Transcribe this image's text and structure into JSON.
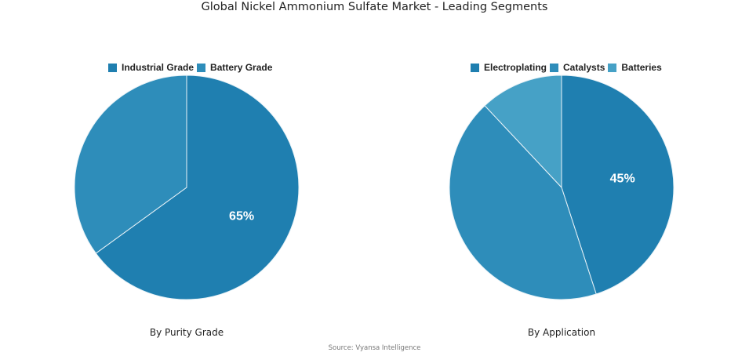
{
  "title": "Global Nickel Ammonium Sulfate Market - Leading Segments",
  "source": "Source: Vyansa Intelligence",
  "colors": {
    "dark": "#1f7fb0",
    "mid": "#2e8dba",
    "light": "#46a1c6"
  },
  "chart_data": [
    {
      "type": "pie",
      "title": "By Purity Grade",
      "categories": [
        "Industrial Grade",
        "Battery Grade"
      ],
      "values": [
        65,
        35
      ],
      "labels": [
        "65%",
        ""
      ],
      "colors": [
        "#1f7fb0",
        "#2e8dba"
      ],
      "legend_position": "top",
      "start_angle": "12 o'clock, clockwise"
    },
    {
      "type": "pie",
      "title": "By Application",
      "categories": [
        "Electroplating",
        "Catalysts",
        "Batteries"
      ],
      "values": [
        45,
        43,
        12
      ],
      "labels": [
        "45%",
        "",
        ""
      ],
      "colors": [
        "#1f7fb0",
        "#2e8dba",
        "#46a1c6"
      ],
      "legend_position": "top",
      "start_angle": "12 o'clock, clockwise"
    }
  ]
}
